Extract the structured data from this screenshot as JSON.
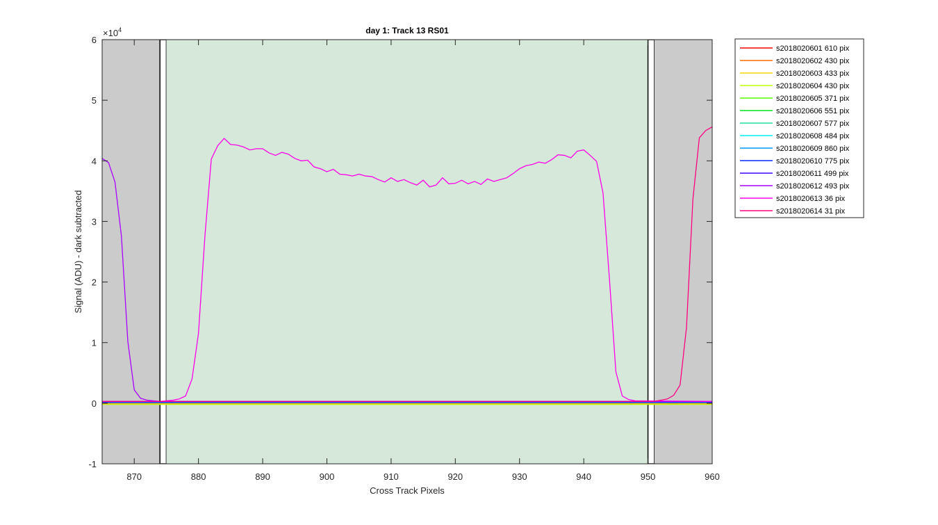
{
  "chart_data": {
    "type": "line",
    "title": "day 1: Track 13  RS01",
    "x_label": "Cross Track Pixels",
    "y_label": "Signal (ADU) - dark subtracted",
    "y_multiplier": "×10",
    "y_multiplier_exponent": "4",
    "xlim": [
      865,
      960
    ],
    "xticks": [
      870,
      880,
      890,
      900,
      910,
      920,
      930,
      940,
      950,
      960
    ],
    "ylim": [
      -1,
      6
    ],
    "yticks": [
      -1,
      0,
      1,
      2,
      3,
      4,
      5,
      6
    ],
    "legend": "outside-right",
    "regions": [
      {
        "x": [
          865,
          874
        ],
        "color": "#cbcbcb",
        "edge": "none"
      },
      {
        "x": [
          874,
          875
        ],
        "color": "#ffffff",
        "edge": "#000000"
      },
      {
        "x": [
          875,
          950
        ],
        "color": "#d5e8d9",
        "edge": "none"
      },
      {
        "x": [
          950,
          951
        ],
        "color": "#ffffff",
        "edge": "#000000"
      },
      {
        "x": [
          951,
          960
        ],
        "color": "#cbcbcb",
        "edge": "none"
      }
    ],
    "series": [
      {
        "name": "s2018020601 610 pix",
        "color": "#ff0000",
        "x": [
          865,
          960
        ],
        "values": [
          0.02,
          0.02
        ]
      },
      {
        "name": "s2018020602 430 pix",
        "color": "#ff6a00",
        "x": [
          865,
          960
        ],
        "values": [
          -0.01,
          -0.01
        ]
      },
      {
        "name": "s2018020603 433 pix",
        "color": "#ffd400",
        "x": [
          865,
          960
        ],
        "values": [
          0,
          0
        ]
      },
      {
        "name": "s2018020604 430 pix",
        "color": "#bfff00",
        "x": [
          865,
          960
        ],
        "values": [
          -0.02,
          -0.02
        ]
      },
      {
        "name": "s2018020605 371 pix",
        "color": "#55ff00",
        "x": [
          865,
          960
        ],
        "values": [
          0.01,
          0.01
        ]
      },
      {
        "name": "s2018020606 551 pix",
        "color": "#00e020",
        "x": [
          865,
          960
        ],
        "values": [
          0.02,
          0.02
        ]
      },
      {
        "name": "s2018020607 577 pix",
        "color": "#20e0a0",
        "x": [
          865,
          960
        ],
        "values": [
          0.01,
          0.01
        ]
      },
      {
        "name": "s2018020608 484 pix",
        "color": "#00f0f0",
        "x": [
          865,
          960
        ],
        "values": [
          0.02,
          0.02
        ]
      },
      {
        "name": "s2018020609 860 pix",
        "color": "#0095ff",
        "x": [
          865,
          960
        ],
        "values": [
          0.01,
          0.01
        ]
      },
      {
        "name": "s2018020610 775 pix",
        "color": "#002aff",
        "x": [
          865,
          960
        ],
        "values": [
          0.03,
          0.03
        ]
      },
      {
        "name": "s2018020611 499 pix",
        "color": "#4000ff",
        "x": [
          865,
          960
        ],
        "values": [
          0.02,
          0.02
        ]
      },
      {
        "name": "s2018020612 493 pix",
        "color": "#aa00ff",
        "x": [
          865,
          866,
          867,
          868,
          869,
          870,
          871,
          872,
          873,
          874,
          960
        ],
        "values": [
          4.04,
          3.97,
          3.65,
          2.76,
          1.02,
          0.22,
          0.08,
          0.05,
          0.04,
          0.03,
          0.03
        ]
      },
      {
        "name": "s2018020613 36 pix",
        "color": "#ff00ea",
        "x": [
          865,
          874,
          875,
          876,
          877,
          878,
          879,
          880,
          881,
          882,
          883,
          884,
          885,
          886,
          887,
          888,
          889,
          890,
          891,
          892,
          893,
          894,
          895,
          896,
          897,
          898,
          899,
          900,
          901,
          902,
          903,
          904,
          905,
          906,
          907,
          908,
          909,
          910,
          911,
          912,
          913,
          914,
          915,
          916,
          917,
          918,
          919,
          920,
          921,
          922,
          923,
          924,
          925,
          926,
          927,
          928,
          929,
          930,
          931,
          932,
          933,
          934,
          935,
          936,
          937,
          938,
          939,
          940,
          941,
          942,
          943,
          944,
          945,
          946,
          947,
          948,
          960
        ],
        "values": [
          0.03,
          0.03,
          0.04,
          0.05,
          0.07,
          0.12,
          0.4,
          1.15,
          2.75,
          4.03,
          4.25,
          4.37,
          4.27,
          4.26,
          4.23,
          4.18,
          4.2,
          4.2,
          4.13,
          4.09,
          4.14,
          4.11,
          4.04,
          4.0,
          4.01,
          3.9,
          3.87,
          3.82,
          3.86,
          3.78,
          3.77,
          3.75,
          3.78,
          3.75,
          3.74,
          3.69,
          3.65,
          3.72,
          3.66,
          3.69,
          3.64,
          3.6,
          3.68,
          3.57,
          3.6,
          3.72,
          3.62,
          3.63,
          3.68,
          3.62,
          3.66,
          3.61,
          3.7,
          3.66,
          3.69,
          3.72,
          3.79,
          3.87,
          3.92,
          3.94,
          3.98,
          3.96,
          4.02,
          4.1,
          4.09,
          4.05,
          4.16,
          4.18,
          4.09,
          3.99,
          3.47,
          2.05,
          0.52,
          0.12,
          0.06,
          0.04,
          0.03
        ]
      },
      {
        "name": "s2018020614 31 pix",
        "color": "#ff0080",
        "x": [
          865,
          951,
          952,
          953,
          954,
          955,
          956,
          957,
          958,
          959,
          960
        ],
        "values": [
          0.03,
          0.03,
          0.05,
          0.07,
          0.13,
          0.3,
          1.25,
          3.37,
          4.38,
          4.5,
          4.56
        ]
      }
    ]
  }
}
